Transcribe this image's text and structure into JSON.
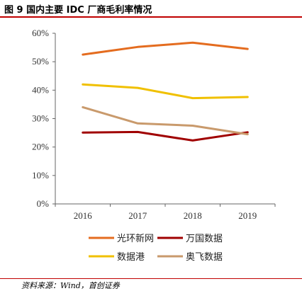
{
  "header": {
    "title": "图 9 国内主要 IDC 厂商毛利率情况"
  },
  "footer": {
    "source": "资料来源：Wind，首创证券"
  },
  "chart_data": {
    "type": "line",
    "title": "图 9 国内主要 IDC 厂商毛利率情况",
    "x": [
      "2016",
      "2017",
      "2018",
      "2019"
    ],
    "ylim": [
      0,
      60
    ],
    "yticks": [
      "0%",
      "10%",
      "20%",
      "30%",
      "40%",
      "50%",
      "60%"
    ],
    "grid": false,
    "legend_position": "bottom",
    "series": [
      {
        "name": "光环新网",
        "color": "#e46c1f",
        "values": [
          52.5,
          55.2,
          56.7,
          54.5
        ]
      },
      {
        "name": "万国数据",
        "color": "#a00000",
        "values": [
          25.1,
          25.3,
          22.3,
          25.2
        ]
      },
      {
        "name": "数据港",
        "color": "#f0c000",
        "values": [
          42.0,
          40.8,
          37.2,
          37.6
        ]
      },
      {
        "name": "奥飞数据",
        "color": "#c99a6c",
        "values": [
          34.0,
          28.3,
          27.5,
          24.5
        ]
      }
    ]
  }
}
